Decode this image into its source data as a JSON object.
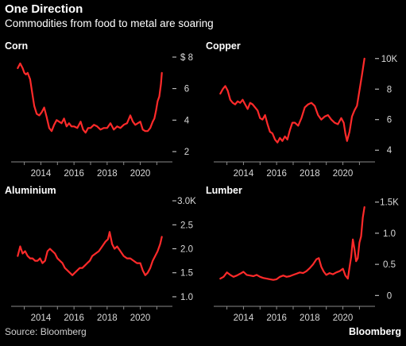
{
  "header": {
    "title": "One Direction",
    "subtitle": "Commodities from food to metal are soaring"
  },
  "footer": {
    "source": "Source: Bloomberg",
    "brand": "Bloomberg"
  },
  "colors": {
    "line": "#ff2a2a",
    "background": "#000000",
    "text": "#ffffff",
    "tick": "#d9d9d9"
  },
  "chart_data": [
    {
      "type": "line",
      "title": "Corn",
      "x_ticks": [
        "2014",
        "2016",
        "2018",
        "2020"
      ],
      "y_ticks": [
        "$ 8",
        "6",
        "4",
        "2"
      ],
      "y_tick_values": [
        8,
        6,
        4,
        2
      ],
      "ylim": [
        1.8,
        8.2
      ],
      "xlim": [
        2012.3,
        2021.7
      ],
      "x": [
        2012.6,
        2012.75,
        2012.9,
        2013.0,
        2013.1,
        2013.2,
        2013.35,
        2013.45,
        2013.6,
        2013.75,
        2013.9,
        2014.05,
        2014.2,
        2014.35,
        2014.5,
        2014.65,
        2014.8,
        2014.95,
        2015.1,
        2015.25,
        2015.4,
        2015.55,
        2015.7,
        2015.85,
        2016.0,
        2016.2,
        2016.4,
        2016.55,
        2016.7,
        2016.85,
        2017.0,
        2017.2,
        2017.4,
        2017.6,
        2017.8,
        2018.0,
        2018.2,
        2018.4,
        2018.6,
        2018.8,
        2019.0,
        2019.2,
        2019.4,
        2019.55,
        2019.7,
        2019.85,
        2020.0,
        2020.15,
        2020.3,
        2020.45,
        2020.6,
        2020.75,
        2020.85,
        2020.95,
        2021.05,
        2021.15,
        2021.25,
        2021.3
      ],
      "values": [
        7.3,
        7.6,
        7.3,
        7.0,
        6.9,
        7.0,
        6.6,
        5.9,
        4.9,
        4.4,
        4.3,
        4.5,
        4.8,
        4.2,
        3.5,
        3.3,
        3.7,
        4.0,
        3.9,
        3.8,
        4.1,
        3.6,
        3.8,
        3.6,
        3.6,
        3.5,
        3.9,
        3.4,
        3.2,
        3.5,
        3.5,
        3.7,
        3.6,
        3.4,
        3.5,
        3.5,
        3.8,
        3.4,
        3.6,
        3.5,
        3.7,
        3.8,
        4.3,
        3.9,
        3.7,
        3.8,
        3.9,
        3.4,
        3.3,
        3.3,
        3.5,
        3.9,
        4.1,
        4.6,
        5.2,
        5.5,
        6.3,
        7.0
      ],
      "xlabel": "",
      "ylabel": "",
      "grid": false
    },
    {
      "type": "line",
      "title": "Copper",
      "x_ticks": [
        "2014",
        "2016",
        "2018",
        "2020"
      ],
      "y_ticks": [
        "10K",
        "8",
        "6",
        "4"
      ],
      "y_tick_values": [
        10,
        8,
        6,
        4
      ],
      "ylim": [
        3.7,
        10.3
      ],
      "xlim": [
        2012.3,
        2021.7
      ],
      "x": [
        2012.6,
        2012.75,
        2012.9,
        2013.05,
        2013.2,
        2013.35,
        2013.5,
        2013.65,
        2013.8,
        2013.95,
        2014.1,
        2014.25,
        2014.4,
        2014.55,
        2014.7,
        2014.85,
        2015.0,
        2015.15,
        2015.3,
        2015.45,
        2015.6,
        2015.75,
        2015.9,
        2016.05,
        2016.2,
        2016.35,
        2016.5,
        2016.65,
        2016.8,
        2016.95,
        2017.1,
        2017.3,
        2017.5,
        2017.7,
        2017.9,
        2018.1,
        2018.3,
        2018.5,
        2018.7,
        2018.9,
        2019.1,
        2019.3,
        2019.5,
        2019.7,
        2019.9,
        2020.05,
        2020.15,
        2020.25,
        2020.4,
        2020.55,
        2020.7,
        2020.85,
        2021.0,
        2021.15,
        2021.3
      ],
      "values": [
        7.7,
        8.0,
        8.2,
        7.9,
        7.3,
        7.1,
        7.0,
        7.2,
        7.1,
        7.3,
        7.0,
        6.7,
        7.1,
        7.0,
        6.8,
        6.6,
        6.1,
        6.0,
        6.3,
        5.7,
        5.2,
        5.1,
        4.7,
        4.5,
        4.8,
        4.6,
        4.9,
        4.7,
        5.3,
        5.8,
        5.8,
        5.6,
        6.1,
        6.8,
        7.0,
        7.1,
        6.9,
        6.3,
        6.0,
        6.2,
        6.3,
        6.0,
        5.8,
        5.7,
        6.1,
        5.8,
        5.1,
        4.6,
        5.2,
        6.2,
        6.6,
        6.9,
        7.9,
        8.9,
        10.0
      ],
      "xlabel": "",
      "ylabel": "",
      "grid": false
    },
    {
      "type": "line",
      "title": "Aluminium",
      "x_ticks": [
        "2014",
        "2016",
        "2018",
        "2020"
      ],
      "y_ticks": [
        "3.0K",
        "2.5",
        "2.0",
        "1.5",
        "1.0"
      ],
      "y_tick_values": [
        3.0,
        2.5,
        2.0,
        1.5,
        1.0
      ],
      "ylim": [
        0.95,
        3.05
      ],
      "xlim": [
        2012.3,
        2021.7
      ],
      "x": [
        2012.6,
        2012.75,
        2012.9,
        2013.05,
        2013.2,
        2013.35,
        2013.5,
        2013.65,
        2013.8,
        2013.95,
        2014.1,
        2014.25,
        2014.4,
        2014.55,
        2014.7,
        2014.85,
        2015.0,
        2015.15,
        2015.3,
        2015.45,
        2015.6,
        2015.75,
        2015.9,
        2016.05,
        2016.2,
        2016.35,
        2016.5,
        2016.65,
        2016.8,
        2016.95,
        2017.1,
        2017.3,
        2017.5,
        2017.7,
        2017.9,
        2018.05,
        2018.15,
        2018.3,
        2018.45,
        2018.6,
        2018.8,
        2019.0,
        2019.2,
        2019.4,
        2019.6,
        2019.8,
        2020.0,
        2020.15,
        2020.3,
        2020.45,
        2020.6,
        2020.75,
        2020.9,
        2021.05,
        2021.2,
        2021.3
      ],
      "values": [
        1.85,
        2.05,
        1.9,
        1.95,
        1.85,
        1.8,
        1.8,
        1.75,
        1.75,
        1.8,
        1.7,
        1.75,
        1.95,
        2.0,
        1.95,
        1.9,
        1.8,
        1.75,
        1.7,
        1.6,
        1.55,
        1.5,
        1.45,
        1.5,
        1.55,
        1.6,
        1.6,
        1.65,
        1.7,
        1.75,
        1.85,
        1.9,
        1.95,
        2.05,
        2.15,
        2.2,
        2.35,
        2.1,
        2.0,
        2.05,
        1.95,
        1.85,
        1.8,
        1.8,
        1.75,
        1.7,
        1.7,
        1.55,
        1.45,
        1.5,
        1.6,
        1.75,
        1.85,
        1.95,
        2.1,
        2.25
      ],
      "xlabel": "",
      "ylabel": "",
      "grid": false
    },
    {
      "type": "line",
      "title": "Lumber",
      "x_ticks": [
        "2014",
        "2016",
        "2018",
        "2020"
      ],
      "y_ticks": [
        "1.5K",
        "1.0",
        "0.5",
        "0"
      ],
      "y_tick_values": [
        1.5,
        1.0,
        0.5,
        0
      ],
      "ylim": [
        -0.06,
        1.56
      ],
      "xlim": [
        2012.3,
        2021.7
      ],
      "x": [
        2012.6,
        2012.8,
        2013.0,
        2013.2,
        2013.4,
        2013.6,
        2013.8,
        2014.0,
        2014.2,
        2014.4,
        2014.6,
        2014.8,
        2015.0,
        2015.2,
        2015.4,
        2015.6,
        2015.8,
        2016.0,
        2016.2,
        2016.4,
        2016.6,
        2016.8,
        2017.0,
        2017.2,
        2017.4,
        2017.6,
        2017.8,
        2018.0,
        2018.2,
        2018.4,
        2018.55,
        2018.7,
        2018.85,
        2019.0,
        2019.2,
        2019.4,
        2019.6,
        2019.8,
        2020.0,
        2020.15,
        2020.3,
        2020.4,
        2020.5,
        2020.6,
        2020.7,
        2020.8,
        2020.9,
        2021.0,
        2021.1,
        2021.2,
        2021.3
      ],
      "values": [
        0.27,
        0.3,
        0.37,
        0.33,
        0.3,
        0.32,
        0.35,
        0.38,
        0.33,
        0.32,
        0.31,
        0.33,
        0.3,
        0.28,
        0.27,
        0.26,
        0.25,
        0.26,
        0.3,
        0.32,
        0.3,
        0.31,
        0.33,
        0.35,
        0.37,
        0.36,
        0.39,
        0.44,
        0.5,
        0.58,
        0.6,
        0.46,
        0.38,
        0.33,
        0.36,
        0.34,
        0.37,
        0.39,
        0.43,
        0.32,
        0.27,
        0.45,
        0.62,
        0.9,
        0.75,
        0.55,
        0.6,
        0.85,
        0.95,
        1.25,
        1.42
      ],
      "xlabel": "",
      "ylabel": "",
      "grid": false
    }
  ]
}
